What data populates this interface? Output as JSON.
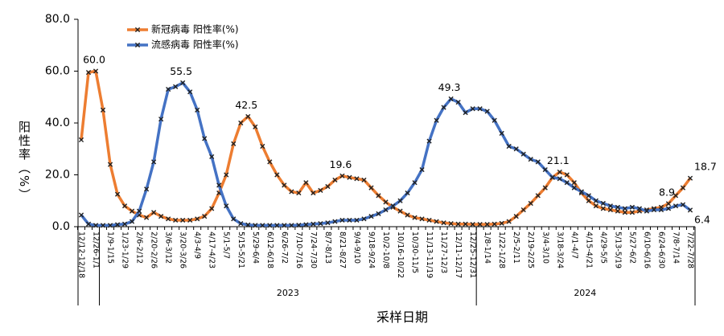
{
  "chart_data": {
    "type": "line",
    "y_label": "阳性率（%）",
    "x_label": "采样日期",
    "categories": [
      "12/12-12/18",
      null,
      "12/26-1/1",
      null,
      "1/9-1/15",
      null,
      "1/23-1/29",
      null,
      "2/6-2/12",
      null,
      "2/20-2/26",
      null,
      "3/6-3/12",
      null,
      "3/20-3/26",
      null,
      "4/3-4/9",
      null,
      "4/17-4/23",
      null,
      "5/1-5/7",
      null,
      "5/15-5/21",
      null,
      "5/29-6/4",
      null,
      "6/12-6/18",
      null,
      "6/26-7/2",
      null,
      "7/10-7/16",
      null,
      "7/24-7/30",
      null,
      "8/7-8/13",
      null,
      "8/21-8/27",
      null,
      "9/4-9/10",
      null,
      "9/18-9/24",
      null,
      "10/2-10/8",
      null,
      "10/16-10/22",
      null,
      "10/30-11/5",
      null,
      "11/13-11/19",
      null,
      "11/27-12/3",
      null,
      "12/11-12/17",
      null,
      "12/25-12/31",
      null,
      "1/8-1/14",
      null,
      "1/22-1/28",
      null,
      "2/5-2/11",
      null,
      "2/19-2/25",
      null,
      "3/4-3/10",
      null,
      "3/18-3/24",
      null,
      "4/1-4/7",
      null,
      "4/15-4/21",
      null,
      "4/29-5/5",
      null,
      "5/13-5/19",
      null,
      "5/27-6/2",
      null,
      "6/10-6/16",
      null,
      "6/24-6/30",
      null,
      "7/8-7/14",
      null,
      "7/22-7/28"
    ],
    "x_groups": [
      "2023",
      "2024"
    ],
    "series": [
      {
        "name": "新冠病毒 阳性率(%)",
        "color": "#ED7D31",
        "values": [
          33.5,
          59.5,
          60.0,
          45,
          24,
          12.5,
          8,
          6,
          4.5,
          3.5,
          5.5,
          4,
          3,
          2.5,
          2.5,
          2.5,
          3,
          4,
          7,
          13,
          20,
          32,
          40,
          42.5,
          38.5,
          31,
          25,
          20,
          16,
          13.5,
          13,
          17,
          13,
          14,
          15.5,
          18,
          19.6,
          19,
          18.5,
          18,
          15,
          12,
          9.5,
          7.5,
          6,
          4.5,
          3.5,
          3,
          2.5,
          2,
          1.5,
          1.2,
          1,
          1,
          0.9,
          0.9,
          0.9,
          1,
          1.3,
          2,
          4,
          6.5,
          9,
          12,
          15,
          19,
          21.1,
          20,
          17,
          13,
          10,
          8,
          7,
          6.5,
          6,
          5.5,
          5.5,
          6,
          6.5,
          7,
          7.5,
          8.9,
          12,
          15,
          18.7
        ],
        "value_labels": [
          null,
          null,
          "60.0",
          null,
          null,
          null,
          null,
          null,
          null,
          null,
          null,
          null,
          null,
          null,
          null,
          null,
          null,
          null,
          null,
          null,
          null,
          null,
          null,
          "42.5",
          null,
          null,
          null,
          null,
          null,
          null,
          null,
          null,
          null,
          null,
          null,
          null,
          "19.6",
          null,
          null,
          null,
          null,
          null,
          null,
          null,
          null,
          null,
          null,
          null,
          null,
          null,
          null,
          null,
          null,
          null,
          null,
          null,
          null,
          null,
          null,
          null,
          null,
          null,
          null,
          null,
          null,
          null,
          "21.1",
          null,
          null,
          null,
          null,
          null,
          null,
          null,
          null,
          null,
          null,
          null,
          null,
          null,
          null,
          "8.9",
          null,
          null,
          "18.7"
        ]
      },
      {
        "name": "流感病毒 阳性率(%)",
        "color": "#4472C4",
        "values": [
          4.5,
          1,
          0.5,
          0.5,
          0.5,
          0.8,
          1,
          2,
          6,
          14.5,
          25,
          41.5,
          53,
          54,
          55.5,
          52,
          45,
          34,
          27,
          16,
          8,
          3,
          1.2,
          0.7,
          0.5,
          0.5,
          0.5,
          0.5,
          0.5,
          0.5,
          0.6,
          0.8,
          1,
          1.2,
          1.5,
          2,
          2.5,
          2.5,
          2.5,
          3,
          4,
          5,
          6.5,
          8,
          10,
          13,
          17,
          22,
          33,
          41,
          46,
          49.3,
          48,
          44,
          45.5,
          45.5,
          44.5,
          41,
          36,
          31,
          30,
          28,
          26,
          25,
          22,
          19,
          18.5,
          17,
          15,
          13.5,
          12,
          10,
          9,
          8,
          7.5,
          7,
          7.5,
          7,
          6,
          6.5,
          6.5,
          7,
          8,
          8.5,
          6.4
        ],
        "value_labels": [
          null,
          null,
          null,
          null,
          null,
          null,
          null,
          null,
          null,
          null,
          null,
          null,
          null,
          null,
          "55.5",
          null,
          null,
          null,
          null,
          null,
          null,
          null,
          null,
          null,
          null,
          null,
          null,
          null,
          null,
          null,
          null,
          null,
          null,
          null,
          null,
          null,
          null,
          null,
          null,
          null,
          null,
          null,
          null,
          null,
          null,
          null,
          null,
          null,
          null,
          null,
          null,
          "49.3",
          null,
          null,
          null,
          null,
          null,
          null,
          null,
          null,
          null,
          null,
          null,
          null,
          null,
          null,
          null,
          null,
          null,
          null,
          null,
          null,
          null,
          null,
          null,
          null,
          null,
          null,
          null,
          null,
          null,
          null,
          null,
          null,
          "6.4"
        ]
      }
    ],
    "ylim": [
      0,
      80
    ],
    "yticks": [
      {
        "value": 0,
        "label": "0.0"
      },
      {
        "value": 20,
        "label": "20.0"
      },
      {
        "value": 40,
        "label": "40.0"
      },
      {
        "value": 60,
        "label": "60.0"
      },
      {
        "value": 80,
        "label": "80.0"
      }
    ],
    "legend": "upper left"
  }
}
